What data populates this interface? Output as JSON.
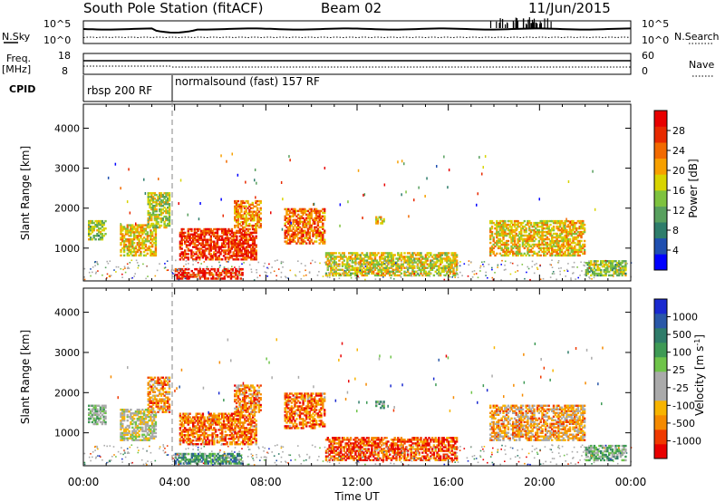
{
  "header": {
    "station": "South Pole Station (fitACF)",
    "beam": "Beam 02",
    "date": "11/Jun/2015"
  },
  "sky_panel": {
    "left_label": "N.Sky",
    "right_label": "N.Search",
    "left_ticks": [
      "10^5",
      "10^0"
    ],
    "right_ticks": [
      "10^5",
      "10^0"
    ]
  },
  "freq_panel": {
    "left_label_1": "Freq.",
    "left_label_2": "[MHz]",
    "right_label": "Nave",
    "left_ticks": [
      "18",
      "8"
    ],
    "right_ticks": [
      "60",
      "0"
    ]
  },
  "cpid_panel": {
    "label": "CPID",
    "segments": [
      "rbsp 200 RF",
      "normalsound (fast) 157 RF"
    ],
    "switch_time_h": 4.0
  },
  "colors": {
    "cpid_divider": "#999999",
    "ground_scatter": "#aaaaaa"
  },
  "chart_data": [
    {
      "type": "heatmap",
      "name": "power",
      "ylabel": "Slant Range [km]",
      "yticks": [
        "1000",
        "2000",
        "3000",
        "4000"
      ],
      "ylim": [
        180,
        4600
      ],
      "xlim": [
        0,
        24
      ],
      "colorbar_label": "Power [dB]",
      "colorbar_ticks": [
        "28",
        "24",
        "20",
        "16",
        "12",
        "8",
        "4"
      ],
      "colorbar_colors": [
        "#0000ff",
        "#1f4fb0",
        "#2e7d6b",
        "#58a05e",
        "#7ec23f",
        "#d8d400",
        "#f7a000",
        "#f26a00",
        "#e82a00",
        "#e80000"
      ],
      "regions": [
        {
          "t0": 0.2,
          "t1": 1.0,
          "r0": 1200,
          "r1": 1700,
          "level": 0.45
        },
        {
          "t0": 1.6,
          "t1": 3.2,
          "r0": 800,
          "r1": 1600,
          "level": 0.6
        },
        {
          "t0": 2.8,
          "t1": 3.8,
          "r0": 1500,
          "r1": 2400,
          "level": 0.5
        },
        {
          "t0": 4.2,
          "t1": 7.6,
          "r0": 700,
          "r1": 1500,
          "level": 0.85
        },
        {
          "t0": 6.6,
          "t1": 7.8,
          "r0": 1500,
          "r1": 2200,
          "level": 0.7
        },
        {
          "t0": 8.8,
          "t1": 10.6,
          "r0": 1100,
          "r1": 2000,
          "level": 0.75
        },
        {
          "t0": 10.6,
          "t1": 16.4,
          "r0": 300,
          "r1": 900,
          "level": 0.55
        },
        {
          "t0": 12.8,
          "t1": 13.2,
          "r0": 1600,
          "r1": 1800,
          "level": 0.6
        },
        {
          "t0": 17.8,
          "t1": 22.0,
          "r0": 800,
          "r1": 1700,
          "level": 0.6
        },
        {
          "t0": 22.0,
          "t1": 23.8,
          "r0": 300,
          "r1": 700,
          "level": 0.45
        },
        {
          "t0": 4.0,
          "t1": 7.0,
          "r0": 220,
          "r1": 500,
          "level": 0.9
        }
      ]
    },
    {
      "type": "heatmap",
      "name": "velocity",
      "xlabel": "Time UT",
      "xticks": [
        "00:00",
        "04:00",
        "08:00",
        "12:00",
        "16:00",
        "20:00",
        "00:00"
      ],
      "ylabel": "Slant Range [km]",
      "yticks": [
        "1000",
        "2000",
        "3000",
        "4000"
      ],
      "ylim": [
        180,
        4600
      ],
      "xlim": [
        0,
        24
      ],
      "colorbar_label": "Velocity [m s^-1]",
      "colorbar_ticks": [
        "1000",
        "500",
        "100",
        "25",
        "-25",
        "-100",
        "-500",
        "-1000"
      ],
      "colorbar_colors": [
        "#e80000",
        "#f03a00",
        "#f58a00",
        "#f7b400",
        "#aaaaaa",
        "#aaaaaa",
        "#6fc44a",
        "#3e9a55",
        "#2f7c6a",
        "#2a58a8",
        "#1a2ad0"
      ],
      "regions": [
        {
          "t0": 0.2,
          "t1": 1.0,
          "r0": 1200,
          "r1": 1700,
          "level": 0.55
        },
        {
          "t0": 1.6,
          "t1": 3.2,
          "r0": 800,
          "r1": 1600,
          "level": 0.45
        },
        {
          "t0": 2.8,
          "t1": 3.8,
          "r0": 1500,
          "r1": 2400,
          "level": 0.25
        },
        {
          "t0": 4.2,
          "t1": 7.6,
          "r0": 700,
          "r1": 1500,
          "level": 0.2
        },
        {
          "t0": 6.6,
          "t1": 7.8,
          "r0": 1500,
          "r1": 2200,
          "level": 0.25
        },
        {
          "t0": 8.8,
          "t1": 10.6,
          "r0": 1100,
          "r1": 2000,
          "level": 0.2
        },
        {
          "t0": 10.6,
          "t1": 16.4,
          "r0": 300,
          "r1": 900,
          "level": 0.15
        },
        {
          "t0": 12.8,
          "t1": 13.2,
          "r0": 1600,
          "r1": 1800,
          "level": 0.65
        },
        {
          "t0": 17.8,
          "t1": 22.0,
          "r0": 800,
          "r1": 1700,
          "level": 0.3
        },
        {
          "t0": 22.0,
          "t1": 23.8,
          "r0": 300,
          "r1": 700,
          "level": 0.6
        },
        {
          "t0": 4.0,
          "t1": 7.0,
          "r0": 220,
          "r1": 500,
          "level": 0.7
        }
      ]
    }
  ]
}
